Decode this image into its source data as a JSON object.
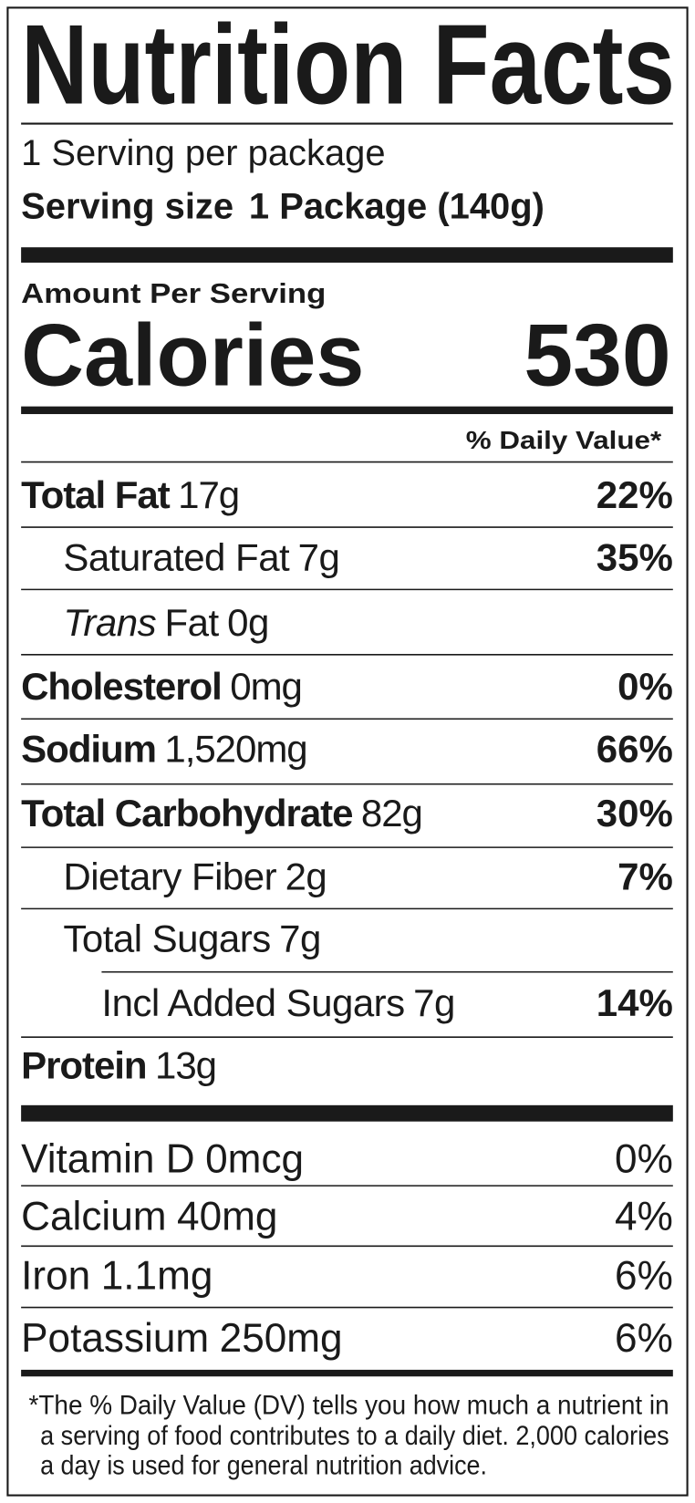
{
  "title": "Nutrition Facts",
  "servings": "1 Serving per package",
  "serving_size": {
    "label": "Serving size",
    "value": "1 Package (140g)"
  },
  "amount_per_serving": "Amount Per Serving",
  "calories": {
    "label": "Calories",
    "value": 530
  },
  "daily_value_header": "% Daily Value*",
  "nutrients": [
    {
      "name": "Total Fat",
      "amount": "17g",
      "dv": "22%"
    },
    {
      "name": "Saturated Fat",
      "amount": "7g",
      "dv": "35%"
    },
    {
      "name_italic": "Trans",
      "name": "Fat",
      "amount": "0g"
    },
    {
      "name": "Cholesterol",
      "amount": "0mg",
      "dv": "0%"
    },
    {
      "name": "Sodium",
      "amount": "1,520mg",
      "dv": "66%"
    },
    {
      "name": "Total Carbohydrate",
      "amount": "82g",
      "dv": "30%"
    },
    {
      "name": "Dietary Fiber",
      "amount": "2g",
      "dv": "7%"
    },
    {
      "name": "Total Sugars",
      "amount": "7g"
    },
    {
      "name": "Incl Added Sugars",
      "amount": "7g",
      "dv": "14%"
    },
    {
      "name": "Protein",
      "amount": "13g"
    }
  ],
  "vitamins": [
    {
      "name": "Vitamin D",
      "amount": "0mcg",
      "dv": "0%"
    },
    {
      "name": "Calcium",
      "amount": "40mg",
      "dv": "4%"
    },
    {
      "name": "Iron",
      "amount": "1.1mg",
      "dv": "6%"
    },
    {
      "name": "Potassium",
      "amount": "250mg",
      "dv": "6%"
    }
  ],
  "footnote": [
    "*The % Daily Value (DV) tells you how much a nutrient in",
    "a serving of food contributes to a daily diet. 2,000 calories",
    "a day is used for general nutrition advice."
  ]
}
